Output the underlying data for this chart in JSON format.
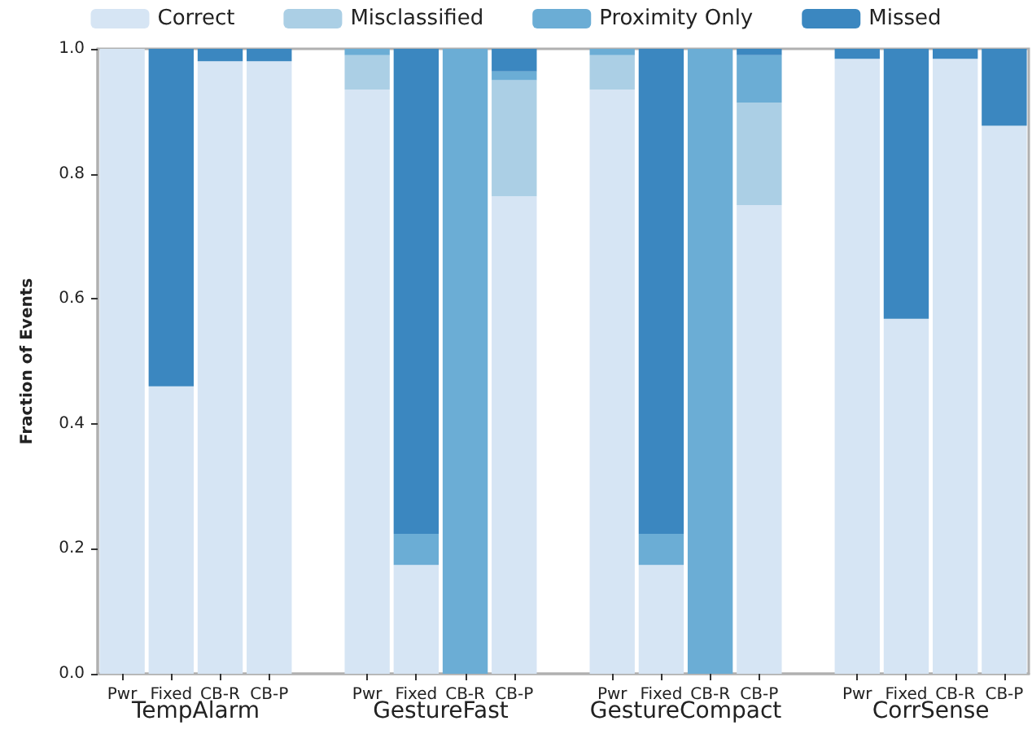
{
  "chart_data": {
    "type": "bar",
    "stacked": true,
    "ylabel": "Fraction of Events",
    "categories": [
      "Pwr",
      "Fixed",
      "CB-R",
      "CB-P",
      null,
      "Pwr",
      "Fixed",
      "CB-R",
      "CB-P",
      null,
      "Pwr",
      "Fixed",
      "CB-R",
      "CB-P",
      null,
      "Pwr",
      "Fixed",
      "CB-R",
      "CB-P"
    ],
    "annotations": [
      "TempAlarm",
      "GestureFast",
      "GestureCompact",
      "CorrSense"
    ],
    "series": [
      {
        "name": "Correct",
        "color": "#d6e5f4",
        "values": [
          1.0,
          0.46,
          0.98,
          0.98,
          null,
          0.935,
          0.174,
          0,
          0.764,
          null,
          0.935,
          0.174,
          0,
          0.75,
          null,
          0.984,
          0.568,
          0.984,
          0.877
        ]
      },
      {
        "name": "Misclassified",
        "color": "#abcfe5",
        "values": [
          0,
          0,
          0,
          0,
          null,
          0.055,
          0,
          0,
          0.186,
          null,
          0.055,
          0,
          0,
          0.164,
          null,
          0,
          0,
          0,
          0
        ]
      },
      {
        "name": "Proximity Only",
        "color": "#6badd5",
        "values": [
          0,
          0,
          0,
          0,
          null,
          0.01,
          0.05,
          1.0,
          0.014,
          null,
          0.01,
          0.05,
          1.0,
          0.076,
          null,
          0,
          0,
          0,
          0
        ]
      },
      {
        "name": "Missed",
        "color": "#3b87c0",
        "values": [
          0,
          0.54,
          0.02,
          0.02,
          null,
          0,
          0.776,
          0,
          0.036,
          null,
          0,
          0.776,
          0,
          0.01,
          null,
          0.016,
          0.432,
          0.016,
          0.123
        ]
      }
    ],
    "ylim": [
      0,
      1
    ],
    "yticks": [
      {
        "value": 0,
        "label": "0.0"
      },
      {
        "value": 0.2,
        "label": "0.2"
      },
      {
        "value": 0.4,
        "label": "0.4"
      },
      {
        "value": 0.6,
        "label": "0.6"
      },
      {
        "value": 0.8,
        "label": "0.8"
      },
      {
        "value": 1,
        "label": "1.0"
      }
    ],
    "grid": false,
    "legend": "top"
  }
}
